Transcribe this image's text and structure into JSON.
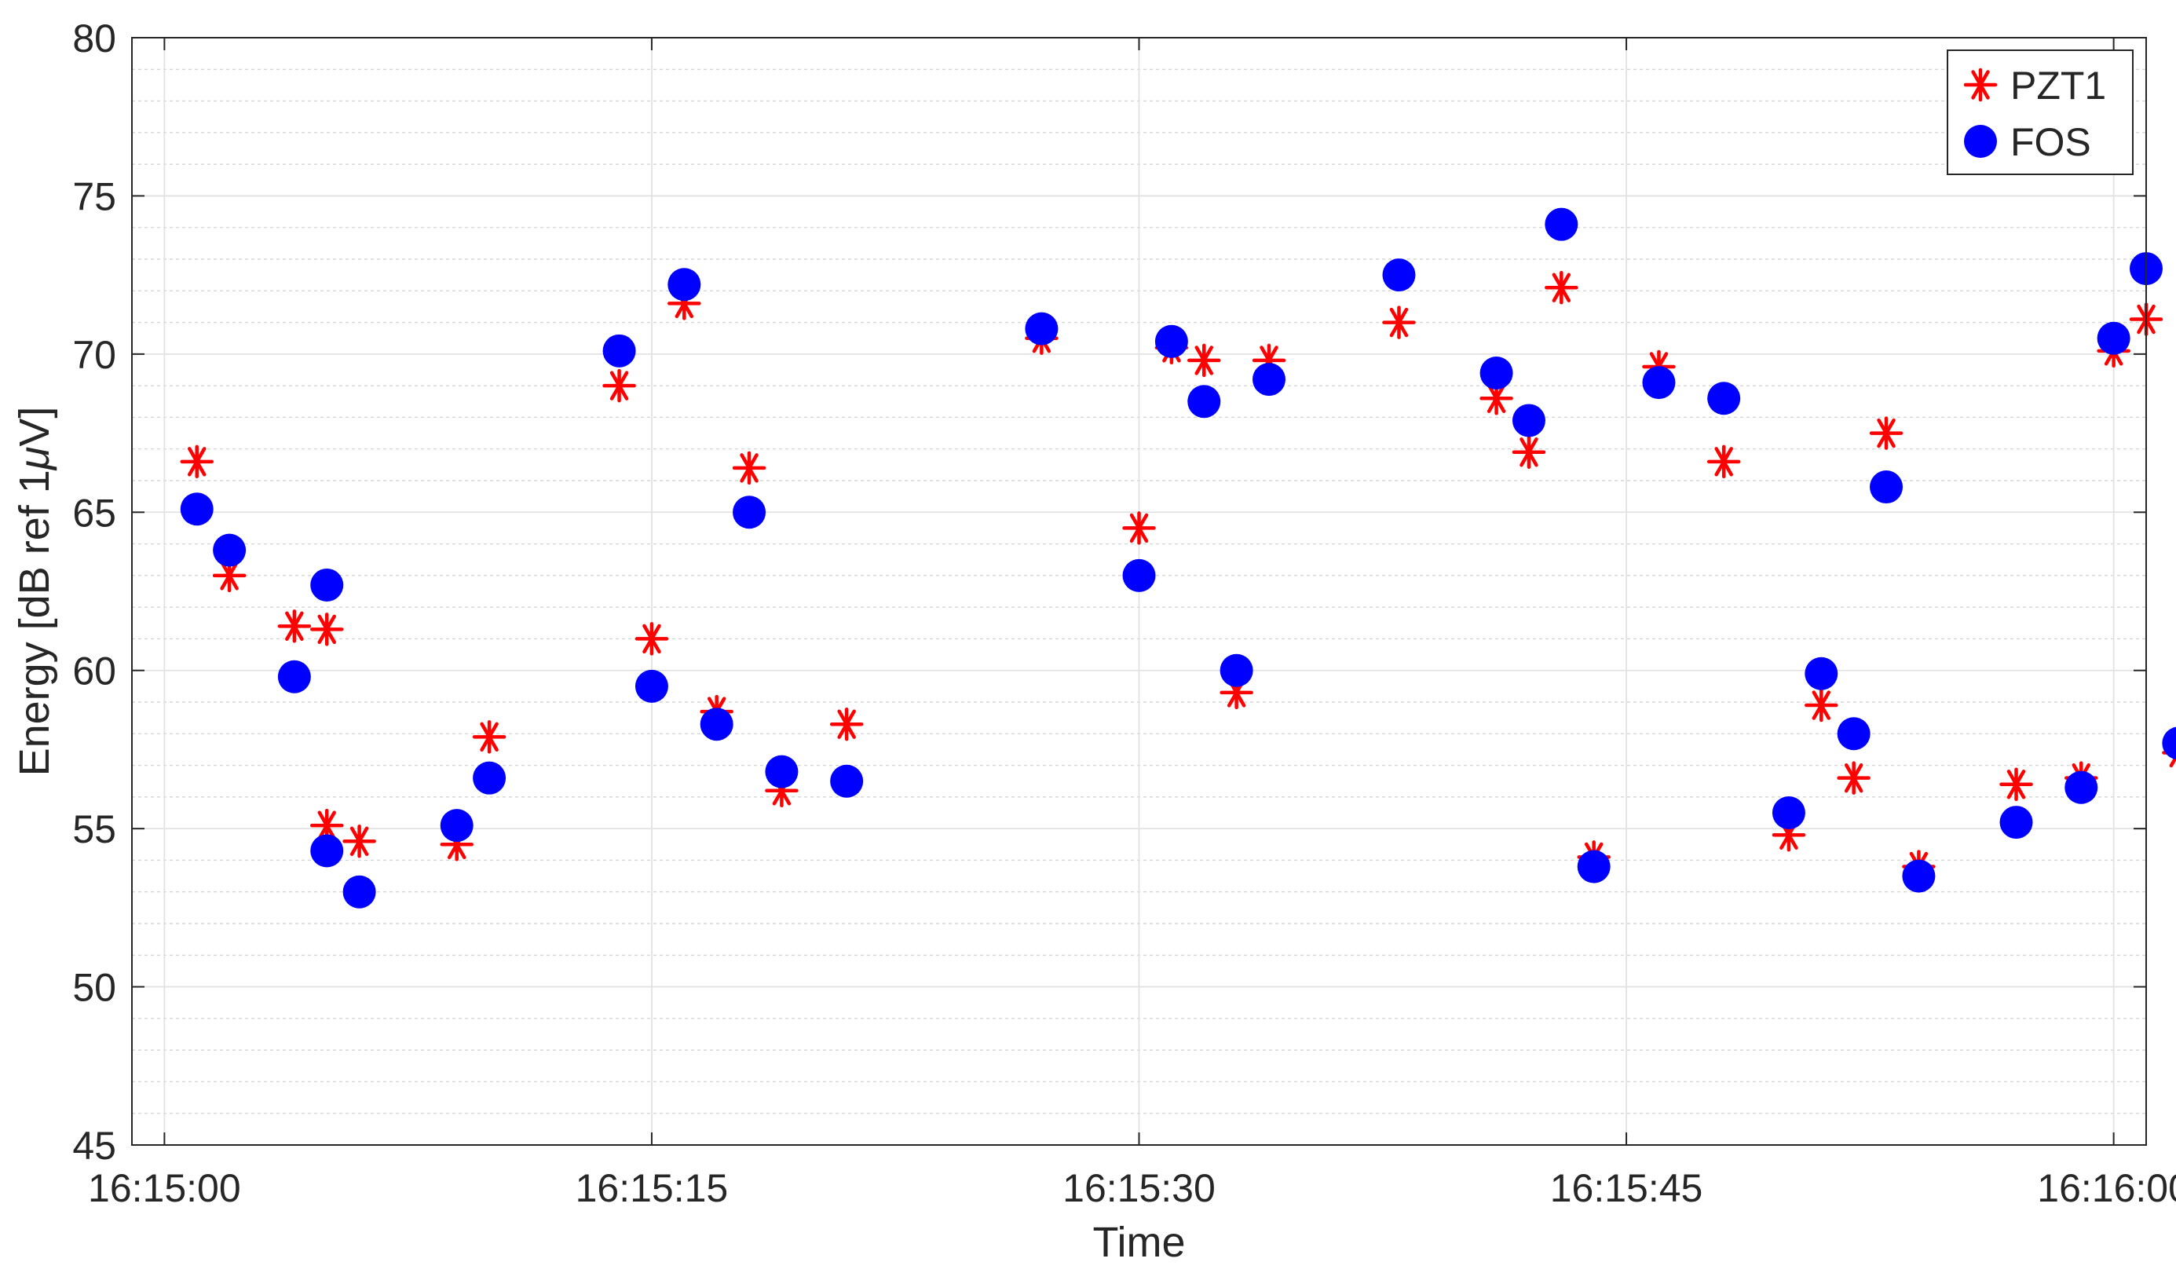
{
  "chart_data": {
    "type": "scatter",
    "xlabel": "Time",
    "ylabel": "Energy [dB ref 1",
    "ylabel_mu": "μ",
    "ylabel_tail": "V]",
    "xlim": [
      "16:14:59",
      "16:16:01"
    ],
    "ylim": [
      45,
      80
    ],
    "x_ticks": [
      "16:15:00",
      "16:15:15",
      "16:15:30",
      "16:15:45",
      "16:16:00"
    ],
    "y_ticks": [
      45,
      50,
      55,
      60,
      65,
      70,
      75,
      80
    ],
    "grid": true,
    "minor_grid": true,
    "legend_position": "top-right",
    "series": [
      {
        "name": "PZT1",
        "marker": "asterisk",
        "color": "#ff0000",
        "points": [
          {
            "x": "16:15:01",
            "y": 66.6
          },
          {
            "x": "16:15:02",
            "y": 63.0
          },
          {
            "x": "16:15:04",
            "y": 61.4
          },
          {
            "x": "16:15:05",
            "y": 61.3
          },
          {
            "x": "16:15:05",
            "y": 55.1
          },
          {
            "x": "16:15:06",
            "y": 54.6
          },
          {
            "x": "16:15:09",
            "y": 54.5
          },
          {
            "x": "16:15:10",
            "y": 57.9
          },
          {
            "x": "16:15:14",
            "y": 69.0
          },
          {
            "x": "16:15:15",
            "y": 61.0
          },
          {
            "x": "16:15:16",
            "y": 71.6
          },
          {
            "x": "16:15:17",
            "y": 58.7
          },
          {
            "x": "16:15:18",
            "y": 66.4
          },
          {
            "x": "16:15:19",
            "y": 56.2
          },
          {
            "x": "16:15:21",
            "y": 58.3
          },
          {
            "x": "16:15:27",
            "y": 70.5
          },
          {
            "x": "16:15:30",
            "y": 64.5
          },
          {
            "x": "16:15:31",
            "y": 70.2
          },
          {
            "x": "16:15:32",
            "y": 69.8
          },
          {
            "x": "16:15:33",
            "y": 59.3
          },
          {
            "x": "16:15:34",
            "y": 69.8
          },
          {
            "x": "16:15:38",
            "y": 71.0
          },
          {
            "x": "16:15:41",
            "y": 68.6
          },
          {
            "x": "16:15:42",
            "y": 66.9
          },
          {
            "x": "16:15:43",
            "y": 72.1
          },
          {
            "x": "16:15:44",
            "y": 54.1
          },
          {
            "x": "16:15:46",
            "y": 69.6
          },
          {
            "x": "16:15:48",
            "y": 66.6
          },
          {
            "x": "16:15:50",
            "y": 54.8
          },
          {
            "x": "16:15:51",
            "y": 58.9
          },
          {
            "x": "16:15:52",
            "y": 56.6
          },
          {
            "x": "16:15:53",
            "y": 67.5
          },
          {
            "x": "16:15:54",
            "y": 53.8
          },
          {
            "x": "16:15:57",
            "y": 56.4
          },
          {
            "x": "16:15:59",
            "y": 56.6
          },
          {
            "x": "16:16:00",
            "y": 70.1
          },
          {
            "x": "16:16:01",
            "y": 71.1
          },
          {
            "x": "16:16:02",
            "y": 57.4
          }
        ]
      },
      {
        "name": "FOS",
        "marker": "circle",
        "color": "#0000ff",
        "points": [
          {
            "x": "16:15:01",
            "y": 65.1
          },
          {
            "x": "16:15:02",
            "y": 63.8
          },
          {
            "x": "16:15:04",
            "y": 59.8
          },
          {
            "x": "16:15:05",
            "y": 62.7
          },
          {
            "x": "16:15:05",
            "y": 54.3
          },
          {
            "x": "16:15:06",
            "y": 53.0
          },
          {
            "x": "16:15:09",
            "y": 55.1
          },
          {
            "x": "16:15:10",
            "y": 56.6
          },
          {
            "x": "16:15:14",
            "y": 70.1
          },
          {
            "x": "16:15:15",
            "y": 59.5
          },
          {
            "x": "16:15:16",
            "y": 72.2
          },
          {
            "x": "16:15:17",
            "y": 58.3
          },
          {
            "x": "16:15:18",
            "y": 65.0
          },
          {
            "x": "16:15:19",
            "y": 56.8
          },
          {
            "x": "16:15:21",
            "y": 56.5
          },
          {
            "x": "16:15:27",
            "y": 70.8
          },
          {
            "x": "16:15:30",
            "y": 63.0
          },
          {
            "x": "16:15:31",
            "y": 70.4
          },
          {
            "x": "16:15:32",
            "y": 68.5
          },
          {
            "x": "16:15:33",
            "y": 60.0
          },
          {
            "x": "16:15:34",
            "y": 69.2
          },
          {
            "x": "16:15:38",
            "y": 72.5
          },
          {
            "x": "16:15:41",
            "y": 69.4
          },
          {
            "x": "16:15:42",
            "y": 67.9
          },
          {
            "x": "16:15:43",
            "y": 74.1
          },
          {
            "x": "16:15:44",
            "y": 53.8
          },
          {
            "x": "16:15:46",
            "y": 69.1
          },
          {
            "x": "16:15:48",
            "y": 68.6
          },
          {
            "x": "16:15:50",
            "y": 55.5
          },
          {
            "x": "16:15:51",
            "y": 59.9
          },
          {
            "x": "16:15:52",
            "y": 58.0
          },
          {
            "x": "16:15:53",
            "y": 65.8
          },
          {
            "x": "16:15:54",
            "y": 53.5
          },
          {
            "x": "16:15:57",
            "y": 55.2
          },
          {
            "x": "16:15:59",
            "y": 56.3
          },
          {
            "x": "16:16:00",
            "y": 70.5
          },
          {
            "x": "16:16:01",
            "y": 72.7
          },
          {
            "x": "16:16:02",
            "y": 57.7
          }
        ]
      }
    ]
  }
}
